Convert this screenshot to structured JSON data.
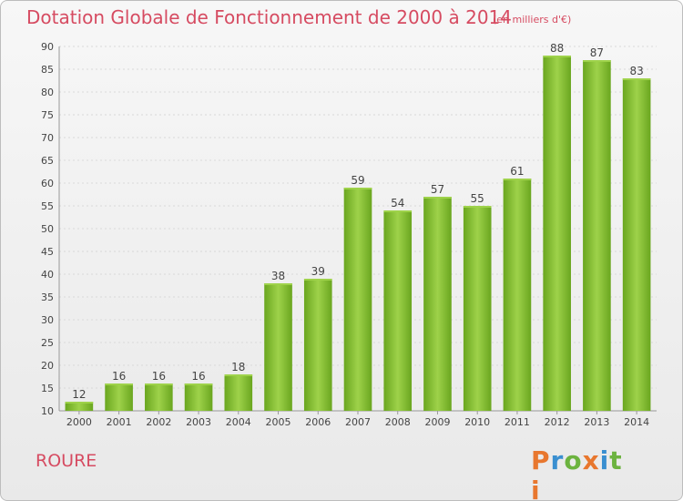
{
  "chart_data": {
    "type": "bar",
    "title": "Dotation Globale de Fonctionnement de 2000 à 2014",
    "subtitle": "(en milliers d'€)",
    "categories": [
      "2000",
      "2001",
      "2002",
      "2003",
      "2004",
      "2005",
      "2006",
      "2007",
      "2008",
      "2009",
      "2010",
      "2011",
      "2012",
      "2013",
      "2014"
    ],
    "values": [
      12,
      16,
      16,
      16,
      18,
      38,
      39,
      59,
      54,
      57,
      55,
      61,
      88,
      87,
      83
    ],
    "ylim": [
      10,
      90
    ],
    "yticks": [
      10,
      15,
      20,
      25,
      30,
      35,
      40,
      45,
      50,
      55,
      60,
      65,
      70,
      75,
      80,
      85,
      90
    ],
    "grid": true,
    "bar_color": "#7dbb2c",
    "bar_color_light": "#9ed24a"
  },
  "footer": {
    "town": "ROURE",
    "logo": "Proxiti"
  },
  "colors": {
    "title": "#d64b61",
    "logo_letters": [
      "#e8772e",
      "#3a8fd0",
      "#6cb33f",
      "#e8772e",
      "#3a8fd0",
      "#6cb33f",
      "#e8772e"
    ]
  }
}
